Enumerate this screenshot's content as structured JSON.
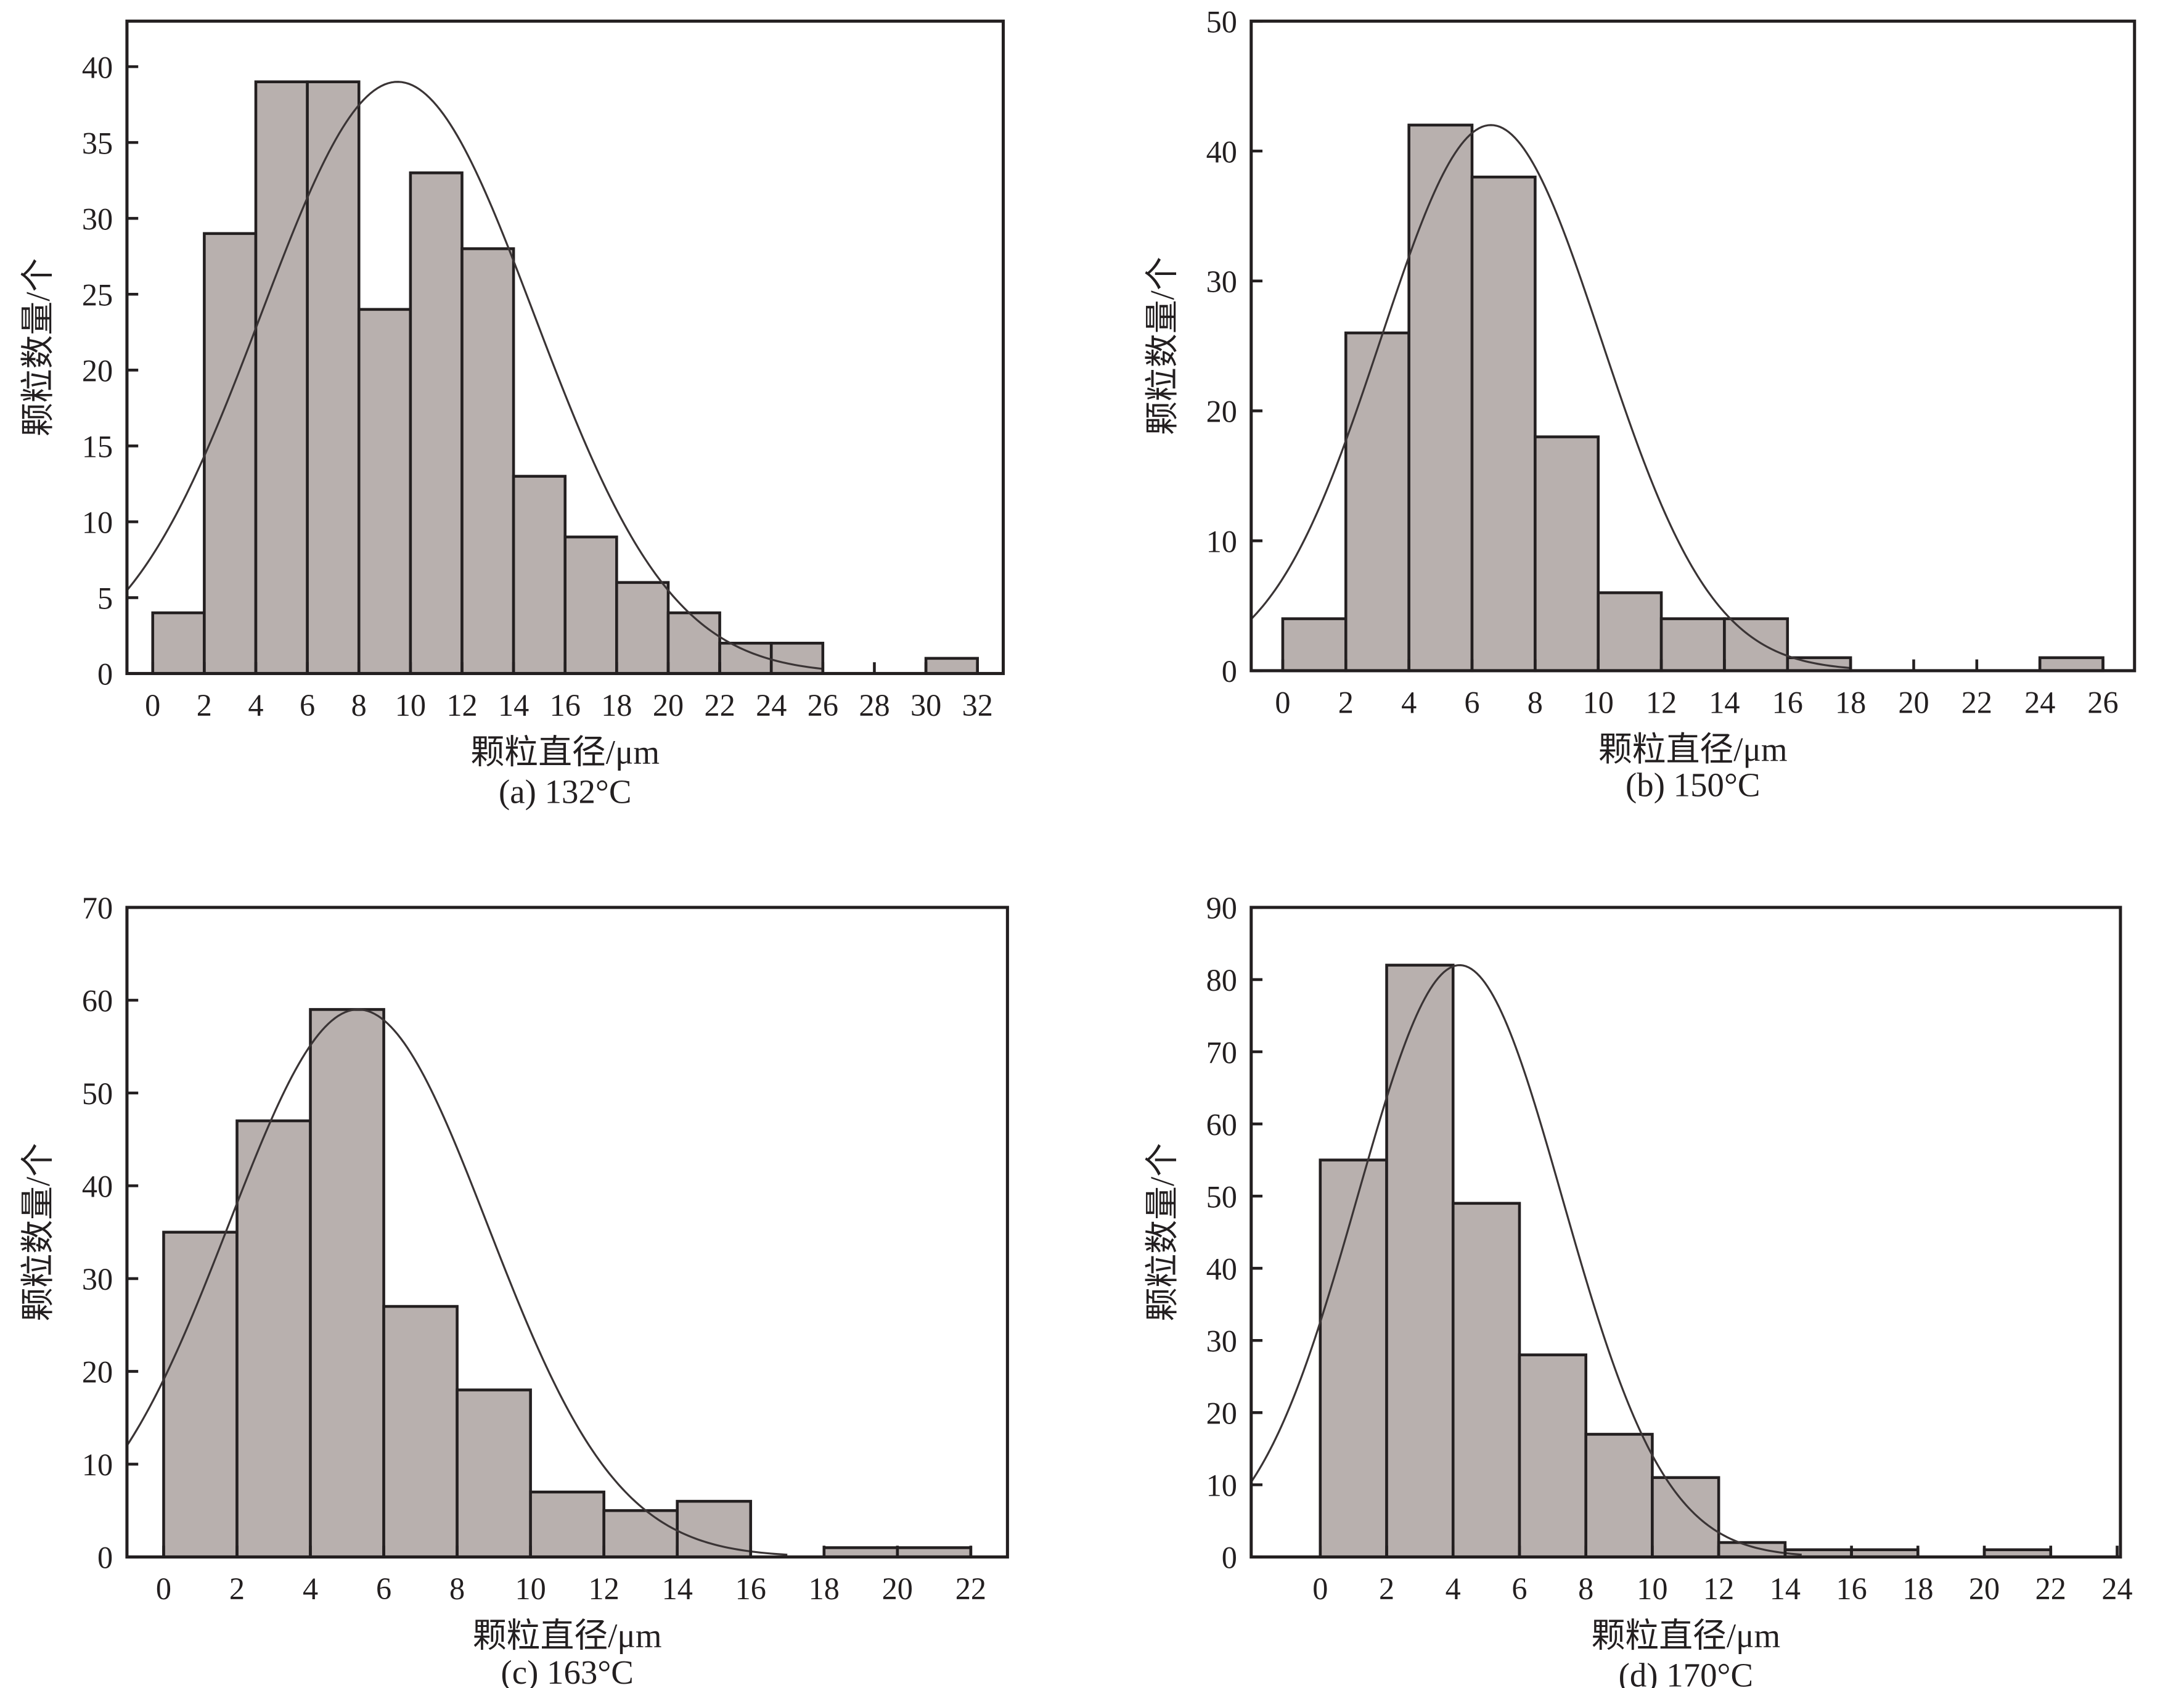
{
  "colors": {
    "bar_fill": "#b8b0ae",
    "stroke": "#231f20",
    "curve": "#3a3435"
  },
  "chart_data": [
    {
      "type": "bar",
      "caption": "(a) 132°C",
      "xlabel": "颗粒直径/μm",
      "ylabel": "颗粒数量/个",
      "xlim": [
        -1,
        33
      ],
      "ylim": [
        0,
        43
      ],
      "xticks": [
        0,
        2,
        4,
        6,
        8,
        10,
        12,
        14,
        16,
        18,
        20,
        22,
        24,
        26,
        28,
        30,
        32
      ],
      "yticks": [
        0,
        5,
        10,
        15,
        20,
        25,
        30,
        35,
        40
      ],
      "bins": [
        [
          0,
          2,
          4
        ],
        [
          2,
          4,
          29
        ],
        [
          4,
          6,
          39
        ],
        [
          6,
          8,
          39
        ],
        [
          8,
          10,
          24
        ],
        [
          10,
          12,
          33
        ],
        [
          12,
          14,
          28
        ],
        [
          14,
          16,
          13
        ],
        [
          16,
          18,
          9
        ],
        [
          18,
          20,
          6
        ],
        [
          20,
          22,
          4
        ],
        [
          22,
          24,
          2
        ],
        [
          24,
          26,
          2
        ],
        [
          30,
          32,
          1
        ]
      ],
      "normal_fit": {
        "mean": 9.5,
        "sd": 5.3,
        "peak": 39,
        "range": [
          -1,
          26
        ]
      }
    },
    {
      "type": "bar",
      "caption": "(b) 150°C",
      "xlabel": "颗粒直径/μm",
      "ylabel": "颗粒数量/个",
      "xlim": [
        -1,
        27
      ],
      "ylim": [
        0,
        50
      ],
      "xticks": [
        0,
        2,
        4,
        6,
        8,
        10,
        12,
        14,
        16,
        18,
        20,
        22,
        24,
        26
      ],
      "yticks": [
        0,
        10,
        20,
        30,
        40,
        50
      ],
      "bins": [
        [
          0,
          2,
          4
        ],
        [
          2,
          4,
          26
        ],
        [
          4,
          6,
          42
        ],
        [
          6,
          8,
          38
        ],
        [
          8,
          10,
          18
        ],
        [
          10,
          12,
          6
        ],
        [
          12,
          14,
          4
        ],
        [
          14,
          16,
          4
        ],
        [
          16,
          18,
          1
        ],
        [
          24,
          26,
          1
        ]
      ],
      "normal_fit": {
        "mean": 6.6,
        "sd": 3.5,
        "peak": 42,
        "range": [
          -1,
          18
        ]
      }
    },
    {
      "type": "bar",
      "caption": "(c) 163°C",
      "xlabel": "颗粒直径/μm",
      "ylabel": "颗粒数量/个",
      "xlim": [
        -1,
        23
      ],
      "ylim": [
        0,
        70
      ],
      "xticks": [
        0,
        2,
        4,
        6,
        8,
        10,
        12,
        14,
        16,
        18,
        20,
        22
      ],
      "yticks": [
        0,
        10,
        20,
        30,
        40,
        50,
        60,
        70
      ],
      "bins": [
        [
          0,
          2,
          35
        ],
        [
          2,
          4,
          47
        ],
        [
          4,
          6,
          59
        ],
        [
          6,
          8,
          27
        ],
        [
          8,
          10,
          18
        ],
        [
          10,
          12,
          7
        ],
        [
          12,
          14,
          5
        ],
        [
          14,
          16,
          6
        ],
        [
          18,
          20,
          1
        ],
        [
          20,
          22,
          1
        ]
      ],
      "normal_fit": {
        "mean": 5.3,
        "sd": 3.53,
        "peak": 59,
        "range": [
          -1,
          17
        ]
      }
    },
    {
      "type": "bar",
      "caption": "(d) 170°C",
      "xlabel": "颗粒直径/μm",
      "ylabel": "颗粒数量/个",
      "xlim": [
        -2.08,
        24.1
      ],
      "ylim": [
        0,
        90
      ],
      "xticks": [
        0,
        2,
        4,
        6,
        8,
        10,
        12,
        14,
        16,
        18,
        20,
        22,
        24
      ],
      "yticks": [
        0,
        10,
        20,
        30,
        40,
        50,
        60,
        70,
        80,
        90
      ],
      "bins": [
        [
          0,
          2,
          55
        ],
        [
          2,
          4,
          82
        ],
        [
          4,
          6,
          49
        ],
        [
          6,
          8,
          28
        ],
        [
          8,
          10,
          17
        ],
        [
          10,
          12,
          11
        ],
        [
          12,
          14,
          2
        ],
        [
          14,
          16,
          1
        ],
        [
          16,
          18,
          1
        ],
        [
          20,
          22,
          1
        ]
      ],
      "normal_fit": {
        "mean": 4.2,
        "sd": 3.09,
        "peak": 82,
        "range": [
          -2.08,
          14.5
        ]
      }
    }
  ]
}
